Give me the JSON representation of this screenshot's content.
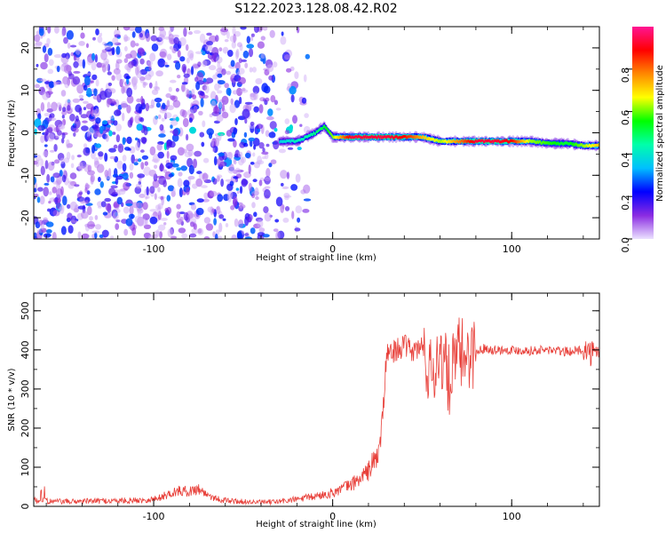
{
  "figure_title": "S122.2023.128.08.42.R02",
  "chart_data": [
    {
      "type": "heatmap",
      "title": "",
      "xlabel": "Height of straight line (km)",
      "ylabel": "Frequency (Hz)",
      "xlim": [
        -167,
        149
      ],
      "ylim": [
        -25,
        25
      ],
      "xticks": [
        -100,
        0,
        100
      ],
      "yticks": [
        -20,
        -10,
        0,
        10,
        20
      ],
      "colorbar": {
        "label": "Normalized spectral amplitude",
        "range": [
          0.0,
          1.0
        ],
        "ticks": [
          0.0,
          0.2,
          0.4,
          0.6,
          0.8
        ],
        "colormap": [
          "#ebe1ff",
          "#8a2be2",
          "#0000ff",
          "#00bfff",
          "#00ffaa",
          "#00ff00",
          "#ffff00",
          "#ff8800",
          "#ff0000",
          "#ff1493"
        ]
      },
      "noise_region_x": [
        -167,
        -20
      ],
      "signal_track": {
        "x": [
          -30,
          -20,
          -10,
          -5,
          0,
          10,
          20,
          30,
          40,
          50,
          60,
          70,
          80,
          90,
          100,
          110,
          120,
          130,
          140,
          149
        ],
        "y": [
          -2,
          -2,
          0,
          1.5,
          -1,
          -1,
          -1,
          -1,
          -1,
          -1,
          -2,
          -2,
          -2,
          -2,
          -2,
          -2,
          -2.5,
          -2.5,
          -3,
          -3
        ],
        "amplitude": [
          0.35,
          0.4,
          0.45,
          0.5,
          0.6,
          0.9,
          0.9,
          0.9,
          0.85,
          0.7,
          0.6,
          0.75,
          0.9,
          0.9,
          0.85,
          0.6,
          0.55,
          0.5,
          0.6,
          0.7
        ]
      }
    },
    {
      "type": "line",
      "title": "",
      "xlabel": "Height of straight line (km)",
      "ylabel": "SNR (10 * v/v)",
      "xlim": [
        -167,
        149
      ],
      "ylim": [
        0,
        545
      ],
      "xticks": [
        -100,
        0,
        100
      ],
      "yticks": [
        0,
        100,
        200,
        300,
        400,
        500
      ],
      "color": "#e8403a",
      "series": [
        {
          "x": [
            -167,
            -150,
            -130,
            -110,
            -100,
            -95,
            -90,
            -85,
            -80,
            -75,
            -70,
            -65,
            -60,
            -50,
            -40,
            -30,
            -20,
            -10,
            0,
            5,
            10,
            15,
            20,
            22,
            25,
            27,
            29,
            30,
            35,
            40,
            45,
            50,
            55,
            60,
            65,
            70,
            75,
            80,
            85,
            90,
            100,
            110,
            120,
            130,
            140,
            149
          ],
          "y": [
            15,
            12,
            14,
            15,
            18,
            25,
            35,
            40,
            38,
            45,
            30,
            20,
            15,
            12,
            10,
            12,
            18,
            25,
            35,
            45,
            55,
            70,
            90,
            110,
            125,
            180,
            300,
            385,
            400,
            410,
            395,
            410,
            330,
            400,
            320,
            390,
            390,
            395,
            405,
            400,
            400,
            398,
            400,
            395,
            400,
            385
          ]
        }
      ]
    }
  ]
}
